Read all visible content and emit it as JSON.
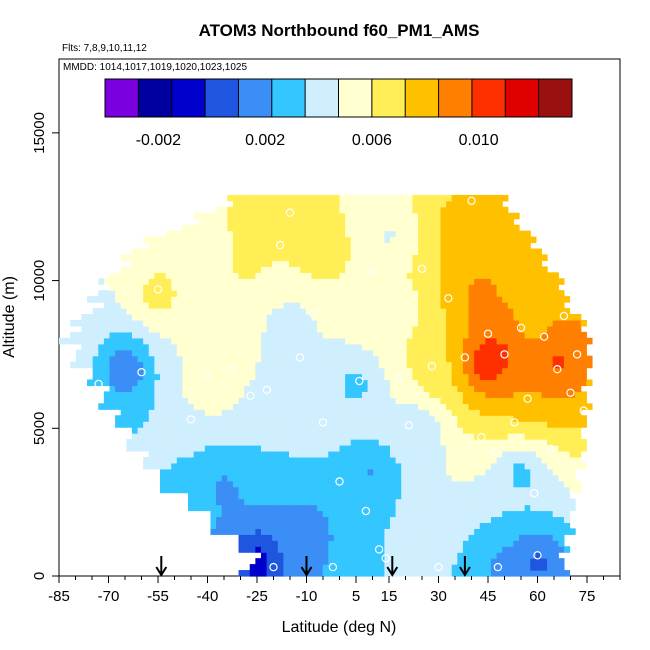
{
  "chart_data": {
    "type": "heatmap",
    "title": "ATOM3 Northbound f60_PM1_AMS",
    "flights_label": "Flts: 7,8,9,10,11,12",
    "mmdd_label": "MMDD: 1014,1017,1019,1020,1023,1025",
    "xlabel": "Latitude (deg N)",
    "ylabel": "Altitude (m)",
    "xlim": [
      -85,
      85
    ],
    "ylim": [
      0,
      17500
    ],
    "x_ticks": [
      "-85",
      "-70",
      "-55",
      "-40",
      "-25",
      "-10",
      "5",
      "15",
      "30",
      "45",
      "60",
      "75"
    ],
    "y_ticks": [
      "0",
      "5000",
      "10000",
      "15000"
    ],
    "colorbar": {
      "min": -0.004,
      "max": 0.0135,
      "tick_values": [
        -0.002,
        0.002,
        0.006,
        0.01
      ],
      "tick_labels": [
        "-0.002",
        "0.002",
        "0.006",
        "0.010"
      ],
      "colors": [
        "#7a00e0",
        "#0000a0",
        "#0000cd",
        "#1e56e0",
        "#3a8ef5",
        "#33c6ff",
        "#cfefff",
        "#ffffd0",
        "#ffee55",
        "#ffc000",
        "#ff8000",
        "#ff3000",
        "#e00000",
        "#9a1010"
      ]
    },
    "arrow_latitudes": [
      -54,
      -10,
      16,
      38
    ],
    "row_count": 64,
    "bin_count": 100,
    "value_field": [
      {
        "lat": -80,
        "alt": 8000,
        "v": 0.0045
      },
      {
        "lat": -65,
        "alt": 7000,
        "v": 0.001
      },
      {
        "lat": -55,
        "alt": 9500,
        "v": 0.0065
      },
      {
        "lat": -50,
        "alt": 4500,
        "v": 0.0035
      },
      {
        "lat": -40,
        "alt": 6500,
        "v": 0.006
      },
      {
        "lat": -35,
        "alt": 3000,
        "v": 0.002
      },
      {
        "lat": -28,
        "alt": 10500,
        "v": 0.0062
      },
      {
        "lat": -25,
        "alt": 500,
        "v": -0.001
      },
      {
        "lat": -20,
        "alt": 12000,
        "v": 0.007
      },
      {
        "lat": -15,
        "alt": 8500,
        "v": 0.004
      },
      {
        "lat": -10,
        "alt": 1500,
        "v": 0.0015
      },
      {
        "lat": -5,
        "alt": 11000,
        "v": 0.0068
      },
      {
        "lat": 5,
        "alt": 6500,
        "v": 0.003
      },
      {
        "lat": 10,
        "alt": 3500,
        "v": 0.002
      },
      {
        "lat": 15,
        "alt": 11500,
        "v": 0.0045
      },
      {
        "lat": 20,
        "alt": 9000,
        "v": 0.0055
      },
      {
        "lat": 25,
        "alt": 5000,
        "v": 0.0035
      },
      {
        "lat": 30,
        "alt": 7000,
        "v": 0.007
      },
      {
        "lat": 38,
        "alt": 11500,
        "v": 0.0085
      },
      {
        "lat": 42,
        "alt": 9500,
        "v": 0.009
      },
      {
        "lat": 45,
        "alt": 7300,
        "v": 0.012
      },
      {
        "lat": 50,
        "alt": 7500,
        "v": 0.01
      },
      {
        "lat": 58,
        "alt": 8500,
        "v": 0.008
      },
      {
        "lat": 62,
        "alt": 6500,
        "v": 0.0085
      },
      {
        "lat": 66,
        "alt": 7200,
        "v": 0.0105
      },
      {
        "lat": 55,
        "alt": 3500,
        "v": 0.003
      },
      {
        "lat": 50,
        "alt": 400,
        "v": 0.002
      },
      {
        "lat": 60,
        "alt": 500,
        "v": 0.0005
      }
    ],
    "sample_points": [
      {
        "lat": -80,
        "alt": 6700
      },
      {
        "lat": -73,
        "alt": 6500
      },
      {
        "lat": -68,
        "alt": 10300
      },
      {
        "lat": -60,
        "alt": 6900
      },
      {
        "lat": -55,
        "alt": 9700
      },
      {
        "lat": -45,
        "alt": 5300
      },
      {
        "lat": -40,
        "alt": 6800
      },
      {
        "lat": -33,
        "alt": 7000
      },
      {
        "lat": -27,
        "alt": 6100
      },
      {
        "lat": -22,
        "alt": 6300
      },
      {
        "lat": -18,
        "alt": 11200
      },
      {
        "lat": -15,
        "alt": 12300
      },
      {
        "lat": -12,
        "alt": 7400
      },
      {
        "lat": -8,
        "alt": 8900
      },
      {
        "lat": -5,
        "alt": 5200
      },
      {
        "lat": 0,
        "alt": 3200
      },
      {
        "lat": 6,
        "alt": 6600
      },
      {
        "lat": 8,
        "alt": 2200
      },
      {
        "lat": 10,
        "alt": 10300
      },
      {
        "lat": 12,
        "alt": 900
      },
      {
        "lat": 14,
        "alt": 600
      },
      {
        "lat": 18,
        "alt": 6700
      },
      {
        "lat": 21,
        "alt": 5100
      },
      {
        "lat": 25,
        "alt": 10400
      },
      {
        "lat": 28,
        "alt": 7100
      },
      {
        "lat": 33,
        "alt": 9400
      },
      {
        "lat": 38,
        "alt": 7400
      },
      {
        "lat": 40,
        "alt": 12700
      },
      {
        "lat": 43,
        "alt": 4700
      },
      {
        "lat": 45,
        "alt": 8200
      },
      {
        "lat": 47,
        "alt": 4200
      },
      {
        "lat": 50,
        "alt": 7500
      },
      {
        "lat": 53,
        "alt": 5200
      },
      {
        "lat": 55,
        "alt": 8400
      },
      {
        "lat": 57,
        "alt": 6000
      },
      {
        "lat": 59,
        "alt": 2800
      },
      {
        "lat": 60,
        "alt": 700
      },
      {
        "lat": 62,
        "alt": 8100
      },
      {
        "lat": 64,
        "alt": 4300
      },
      {
        "lat": 66,
        "alt": 7000
      },
      {
        "lat": 68,
        "alt": 8800
      },
      {
        "lat": 70,
        "alt": 6200
      },
      {
        "lat": 72,
        "alt": 7500
      },
      {
        "lat": 74,
        "alt": 5600
      },
      {
        "lat": -2,
        "alt": 300
      },
      {
        "lat": -20,
        "alt": 300
      },
      {
        "lat": 30,
        "alt": 300
      },
      {
        "lat": 48,
        "alt": 300
      }
    ]
  }
}
